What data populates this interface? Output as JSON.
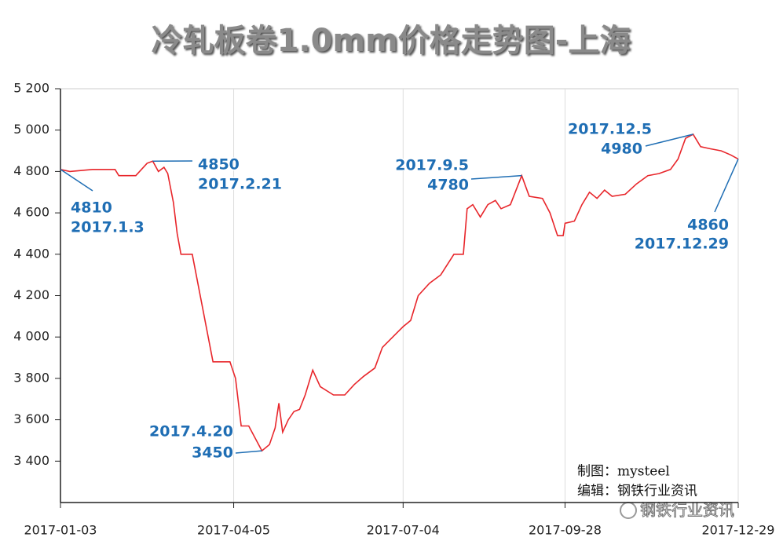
{
  "chart_data": {
    "type": "line",
    "title": "冷轧板卷1.0mm价格走势图-上海",
    "color": "#e8262b",
    "grid": true,
    "x": [
      "2017-01-03",
      "2017-01-08",
      "2017-01-20",
      "2017-02-01",
      "2017-02-03",
      "2017-02-12",
      "2017-02-15",
      "2017-02-18",
      "2017-02-21",
      "2017-02-24",
      "2017-02-27",
      "2017-03-01",
      "2017-03-04",
      "2017-03-06",
      "2017-03-08",
      "2017-03-14",
      "2017-03-25",
      "2017-04-03",
      "2017-04-06",
      "2017-04-09",
      "2017-04-13",
      "2017-04-20",
      "2017-04-24",
      "2017-04-27",
      "2017-04-29",
      "2017-05-01",
      "2017-05-04",
      "2017-05-07",
      "2017-05-10",
      "2017-05-13",
      "2017-05-17",
      "2017-05-21",
      "2017-05-28",
      "2017-06-03",
      "2017-06-08",
      "2017-06-13",
      "2017-06-19",
      "2017-06-23",
      "2017-07-04",
      "2017-07-08",
      "2017-07-12",
      "2017-07-18",
      "2017-07-24",
      "2017-07-31",
      "2017-08-05",
      "2017-08-07",
      "2017-08-10",
      "2017-08-14",
      "2017-08-18",
      "2017-08-22",
      "2017-08-25",
      "2017-08-30",
      "2017-09-05",
      "2017-09-09",
      "2017-09-16",
      "2017-09-20",
      "2017-09-24",
      "2017-09-27",
      "2017-09-28",
      "2017-10-03",
      "2017-10-07",
      "2017-10-11",
      "2017-10-15",
      "2017-10-19",
      "2017-10-23",
      "2017-10-30",
      "2017-11-05",
      "2017-11-11",
      "2017-11-17",
      "2017-11-23",
      "2017-11-27",
      "2017-12-01",
      "2017-12-05",
      "2017-12-09",
      "2017-12-14",
      "2017-12-20",
      "2017-12-25",
      "2017-12-29"
    ],
    "values": [
      4810,
      4800,
      4810,
      4810,
      4780,
      4780,
      4810,
      4840,
      4850,
      4800,
      4820,
      4790,
      4650,
      4500,
      4400,
      4400,
      3880,
      3880,
      3800,
      3570,
      3570,
      3450,
      3480,
      3560,
      3680,
      3540,
      3600,
      3640,
      3650,
      3720,
      3840,
      3760,
      3720,
      3720,
      3770,
      3810,
      3850,
      3950,
      4050,
      4080,
      4200,
      4260,
      4300,
      4400,
      4400,
      4620,
      4640,
      4580,
      4640,
      4660,
      4620,
      4640,
      4780,
      4680,
      4670,
      4600,
      4490,
      4490,
      4550,
      4560,
      4640,
      4700,
      4670,
      4710,
      4680,
      4690,
      4740,
      4780,
      4790,
      4810,
      4860,
      4960,
      4980,
      4920,
      4910,
      4900,
      4880,
      4860
    ],
    "xlim": [
      "2017-01-03",
      "2017-12-29"
    ],
    "xticks": [
      "2017-01-03",
      "2017-04-05",
      "2017-07-04",
      "2017-09-28",
      "2017-12-29"
    ],
    "ylim": [
      3200,
      5200
    ],
    "yticks": [
      {
        "value": 3400,
        "label": "3 400"
      },
      {
        "value": 3600,
        "label": "3 600"
      },
      {
        "value": 3800,
        "label": "3 800"
      },
      {
        "value": 4000,
        "label": "4 000"
      },
      {
        "value": 4200,
        "label": "4 200"
      },
      {
        "value": 4400,
        "label": "4 400"
      },
      {
        "value": 4600,
        "label": "4 600"
      },
      {
        "value": 4800,
        "label": "4 800"
      },
      {
        "value": 5000,
        "label": "5 000"
      },
      {
        "value": 5200,
        "label": "5 200"
      }
    ],
    "annotations": [
      {
        "value": "4810",
        "date": "2017.1.3"
      },
      {
        "value": "4850",
        "date": "2017.2.21"
      },
      {
        "value": "3450",
        "date": "2017.4.20"
      },
      {
        "value": "4780",
        "date": "2017.9.5"
      },
      {
        "value": "4980",
        "date": "2017.12.5"
      },
      {
        "value": "4860",
        "date": "2017.12.29"
      }
    ],
    "credits": [
      "制图：mysteel",
      "编辑：钢铁行业资讯"
    ],
    "watermark": "钢铁行业资讯"
  }
}
